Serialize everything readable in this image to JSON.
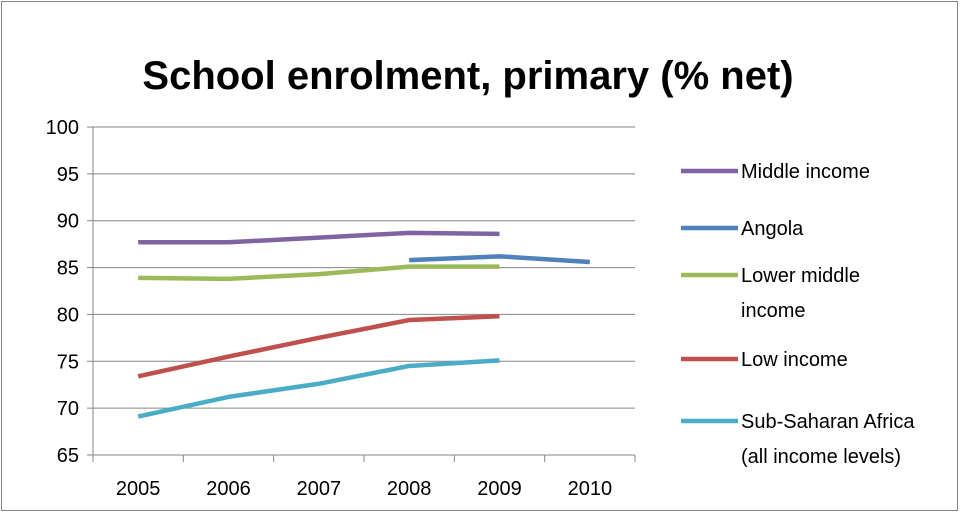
{
  "chart_data": {
    "type": "line",
    "title": "School enrolment, primary (% net)",
    "xlabel": "",
    "ylabel": "",
    "categories": [
      "2005",
      "2006",
      "2007",
      "2008",
      "2009",
      "2010"
    ],
    "ylim": [
      65,
      100
    ],
    "yticks": [
      65,
      70,
      75,
      80,
      85,
      90,
      95,
      100
    ],
    "grid": true,
    "legend_position": "right",
    "series": [
      {
        "name": "Middle income",
        "color": "#8064A2",
        "values": [
          87.7,
          87.7,
          88.2,
          88.7,
          88.6,
          null
        ]
      },
      {
        "name": "Angola",
        "color": "#4F81BD",
        "values": [
          null,
          null,
          null,
          85.8,
          86.2,
          85.6
        ]
      },
      {
        "name": "Lower middle income",
        "color": "#9BBB59",
        "values": [
          83.9,
          83.8,
          84.3,
          85.1,
          85.1,
          null
        ]
      },
      {
        "name": "Low income",
        "color": "#C0504D",
        "values": [
          73.4,
          75.5,
          77.5,
          79.4,
          79.8,
          null
        ]
      },
      {
        "name": "Sub-Saharan Africa (all income levels)",
        "color": "#4BACC6",
        "values": [
          69.1,
          71.2,
          72.6,
          74.5,
          75.1,
          null
        ]
      }
    ]
  }
}
